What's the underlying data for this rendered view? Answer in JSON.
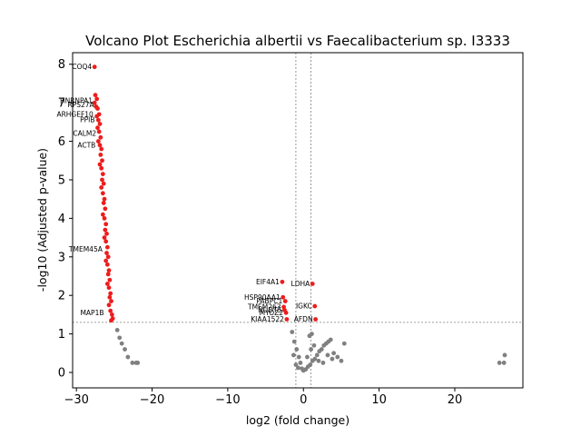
{
  "chart_data": {
    "type": "scatter",
    "title": "Volcano Plot Escherichia albertii vs Faecalibacterium sp. I3333",
    "xlabel": "log2 (fold change)",
    "ylabel": "-log10 (Adjusted p-value)",
    "xlim": [
      -30.5,
      29
    ],
    "ylim": [
      -0.4,
      8.3
    ],
    "xticks": [
      -30,
      -20,
      -10,
      0,
      10,
      20
    ],
    "yticks": [
      0,
      1,
      2,
      3,
      4,
      5,
      6,
      7,
      8
    ],
    "significance_threshold_y": 1.3,
    "fold_change_thresholds_x": [
      -1,
      1
    ],
    "grid": false,
    "colors": {
      "significant": "#ee1c1c",
      "not_significant": "#808080",
      "threshold_line": "#808080"
    },
    "labeled_points": [
      {
        "label": "COQ4",
        "x": -27.6,
        "y": 7.93
      },
      {
        "label": "EIF4A1",
        "x": -2.8,
        "y": 2.35
      },
      {
        "label": "LDHA",
        "x": 1.2,
        "y": 2.3
      },
      {
        "label": "HSP90AA1",
        "x": -2.7,
        "y": 1.95
      },
      {
        "label": "PABPC1",
        "x": -2.4,
        "y": 1.85
      },
      {
        "label": "TMEM263",
        "x": -2.6,
        "y": 1.7
      },
      {
        "label": "IGKC",
        "x": 1.5,
        "y": 1.72
      },
      {
        "label": "NUDT5",
        "x": -2.5,
        "y": 1.62
      },
      {
        "label": "MYOZ2",
        "x": -2.3,
        "y": 1.55
      },
      {
        "label": "AFDN",
        "x": 1.6,
        "y": 1.38
      },
      {
        "label": "KIAA1522",
        "x": -2.2,
        "y": 1.38
      },
      {
        "label": "HNRNPA1",
        "x": -27.5,
        "y": 7.05
      },
      {
        "label": "RPS27A",
        "x": -27.3,
        "y": 6.95
      },
      {
        "label": "ARHGEF10",
        "x": -27.4,
        "y": 6.7
      },
      {
        "label": "PPIB",
        "x": -27.2,
        "y": 6.55
      },
      {
        "label": "CALM2",
        "x": -27.0,
        "y": 6.2
      },
      {
        "label": "ACTB",
        "x": -27.1,
        "y": 5.9
      },
      {
        "label": "TMEM45A",
        "x": -26.2,
        "y": 3.2
      },
      {
        "label": "MAP1B",
        "x": -26.0,
        "y": 1.55
      }
    ],
    "significant_points": [
      [
        -27.5,
        7.2
      ],
      [
        -27.3,
        7.1
      ],
      [
        -27.6,
        7.0
      ],
      [
        -27.4,
        6.9
      ],
      [
        -27.2,
        6.85
      ],
      [
        -27.0,
        6.7
      ],
      [
        -27.3,
        6.65
      ],
      [
        -27.1,
        6.55
      ],
      [
        -26.9,
        6.45
      ],
      [
        -27.2,
        6.35
      ],
      [
        -27.0,
        6.25
      ],
      [
        -26.8,
        6.1
      ],
      [
        -27.1,
        6.0
      ],
      [
        -26.9,
        5.9
      ],
      [
        -26.7,
        5.8
      ],
      [
        -26.8,
        5.65
      ],
      [
        -26.6,
        5.5
      ],
      [
        -26.9,
        5.4
      ],
      [
        -26.7,
        5.3
      ],
      [
        -26.5,
        5.15
      ],
      [
        -26.6,
        5.0
      ],
      [
        -26.4,
        4.9
      ],
      [
        -26.7,
        4.8
      ],
      [
        -26.5,
        4.65
      ],
      [
        -26.3,
        4.5
      ],
      [
        -26.4,
        4.4
      ],
      [
        -26.2,
        4.25
      ],
      [
        -26.5,
        4.1
      ],
      [
        -26.3,
        4.0
      ],
      [
        -26.1,
        3.85
      ],
      [
        -26.2,
        3.7
      ],
      [
        -26.0,
        3.6
      ],
      [
        -26.3,
        3.5
      ],
      [
        -26.1,
        3.4
      ],
      [
        -25.9,
        3.25
      ],
      [
        -26.0,
        3.1
      ],
      [
        -25.8,
        3.0
      ],
      [
        -26.1,
        2.9
      ],
      [
        -25.9,
        2.8
      ],
      [
        -25.7,
        2.65
      ],
      [
        -25.8,
        2.55
      ],
      [
        -25.6,
        2.4
      ],
      [
        -25.9,
        2.3
      ],
      [
        -25.7,
        2.2
      ],
      [
        -25.5,
        2.05
      ],
      [
        -25.6,
        1.95
      ],
      [
        -25.4,
        1.85
      ],
      [
        -25.7,
        1.75
      ],
      [
        -25.5,
        1.6
      ],
      [
        -25.3,
        1.5
      ],
      [
        -25.2,
        1.4
      ],
      [
        -25.4,
        1.35
      ],
      [
        -2.8,
        2.35
      ],
      [
        1.2,
        2.3
      ],
      [
        -2.7,
        1.95
      ],
      [
        -2.4,
        1.85
      ],
      [
        -2.6,
        1.7
      ],
      [
        1.5,
        1.72
      ],
      [
        -2.5,
        1.62
      ],
      [
        -2.3,
        1.55
      ],
      [
        1.6,
        1.38
      ],
      [
        -2.2,
        1.38
      ],
      [
        -27.6,
        7.93
      ]
    ],
    "nonsignificant_points": [
      [
        -24.6,
        1.1
      ],
      [
        -24.3,
        0.9
      ],
      [
        -24.0,
        0.75
      ],
      [
        -23.6,
        0.6
      ],
      [
        -23.2,
        0.4
      ],
      [
        -22.6,
        0.25
      ],
      [
        -22.1,
        0.25
      ],
      [
        -21.9,
        0.25
      ],
      [
        -1.5,
        1.05
      ],
      [
        -1.2,
        0.8
      ],
      [
        -0.9,
        0.6
      ],
      [
        -0.6,
        0.4
      ],
      [
        -0.4,
        0.25
      ],
      [
        -0.2,
        0.1
      ],
      [
        0.0,
        0.05
      ],
      [
        0.3,
        0.08
      ],
      [
        0.6,
        0.15
      ],
      [
        0.9,
        0.2
      ],
      [
        1.2,
        0.3
      ],
      [
        1.5,
        0.35
      ],
      [
        1.8,
        0.45
      ],
      [
        2.1,
        0.55
      ],
      [
        2.4,
        0.6
      ],
      [
        2.7,
        0.7
      ],
      [
        3.0,
        0.75
      ],
      [
        3.3,
        0.8
      ],
      [
        3.6,
        0.85
      ],
      [
        4.0,
        0.5
      ],
      [
        4.5,
        0.4
      ],
      [
        5.0,
        0.3
      ],
      [
        5.4,
        0.75
      ],
      [
        -1.0,
        0.2
      ],
      [
        -0.7,
        0.12
      ],
      [
        0.5,
        0.4
      ],
      [
        1.0,
        0.6
      ],
      [
        1.4,
        0.7
      ],
      [
        2.0,
        0.3
      ],
      [
        2.6,
        0.25
      ],
      [
        3.2,
        0.45
      ],
      [
        3.8,
        0.35
      ],
      [
        0.8,
        0.95
      ],
      [
        1.1,
        1.0
      ],
      [
        -1.3,
        0.45
      ],
      [
        25.9,
        0.25
      ],
      [
        26.5,
        0.25
      ],
      [
        26.6,
        0.45
      ]
    ]
  }
}
